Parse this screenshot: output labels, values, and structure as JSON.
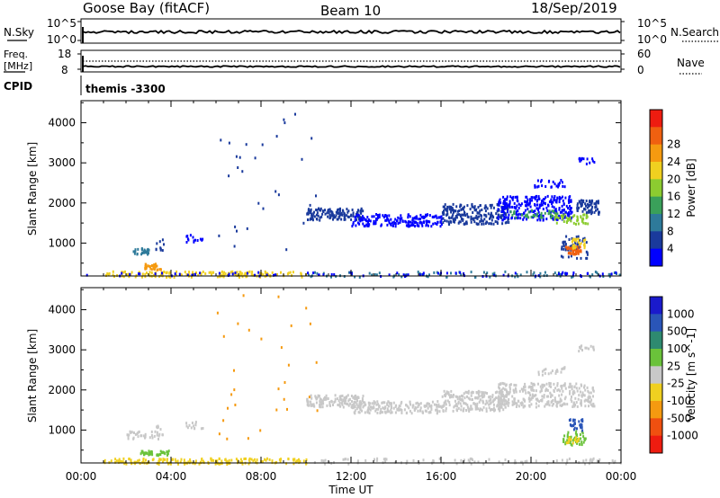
{
  "header": {
    "station": "Goose Bay (fitACF)",
    "beam": "Beam 10",
    "date": "18/Sep/2019"
  },
  "status_panels": {
    "nsky": {
      "label": "N.Sky",
      "ticks": [
        "10^5",
        "10^0"
      ]
    },
    "nsearch": {
      "label": "N.Search",
      "ticks": [
        "10^5",
        "10^0"
      ]
    },
    "freq": {
      "label_line1": "Freq.",
      "label_line2": "[MHz]",
      "ticks": [
        "18",
        "8"
      ]
    },
    "nave": {
      "label": "Nave",
      "ticks": [
        "60",
        "0"
      ]
    },
    "cpid": {
      "label": "CPID",
      "value": "themis -3300"
    }
  },
  "colors": {
    "power_scale": [
      "#0000ff",
      "#1a3a9c",
      "#2e7a9a",
      "#3aa05a",
      "#8ccc30",
      "#f0d020",
      "#f59a10",
      "#f06010",
      "#ee1c10"
    ],
    "velocity_scale": [
      "#1a1acc",
      "#2a55b8",
      "#2e8a70",
      "#6ac23a",
      "#c8c8c8",
      "#f0d020",
      "#f59a10",
      "#f05010",
      "#ee1c10"
    ]
  },
  "chart_data": [
    {
      "type": "scatter",
      "panel": "power",
      "ylabel": "Slant Range [km]",
      "ylim": [
        180,
        4550
      ],
      "yticks": [
        "1000",
        "2000",
        "3000",
        "4000"
      ],
      "colorbar": {
        "label": "Power [dB]",
        "levels": [
          "4",
          "8",
          "12",
          "16",
          "20",
          "24",
          "28"
        ]
      },
      "regions": [
        {
          "t": [
            1.0,
            10.0
          ],
          "r": [
            180,
            320
          ],
          "color": 5,
          "n": 160
        },
        {
          "t": [
            10.0,
            24.0
          ],
          "r": [
            180,
            320
          ],
          "color": 2,
          "n": 90
        },
        {
          "t": [
            0.0,
            24.0
          ],
          "r": [
            200,
            300
          ],
          "color": 0,
          "n": 80
        },
        {
          "t": [
            2.3,
            3.0
          ],
          "r": [
            750,
            900
          ],
          "color": 2,
          "n": 26
        },
        {
          "t": [
            2.8,
            3.6
          ],
          "r": [
            350,
            520
          ],
          "color": 6,
          "n": 30
        },
        {
          "t": [
            3.3,
            3.7
          ],
          "r": [
            850,
            1150
          ],
          "color": 1,
          "n": 10
        },
        {
          "t": [
            4.6,
            5.4
          ],
          "r": [
            1050,
            1250
          ],
          "color": 0,
          "n": 14
        },
        {
          "t": [
            6.0,
            10.5
          ],
          "r": [
            800,
            4400
          ],
          "color": 1,
          "n": 30
        },
        {
          "t": [
            10.0,
            12.5
          ],
          "r": [
            1600,
            1900
          ],
          "color": 1,
          "n": 140
        },
        {
          "t": [
            12.0,
            16.0
          ],
          "r": [
            1450,
            1750
          ],
          "color": 0,
          "n": 180
        },
        {
          "t": [
            16.0,
            19.0
          ],
          "r": [
            1500,
            2000
          ],
          "color": 1,
          "n": 220
        },
        {
          "t": [
            18.5,
            21.8
          ],
          "r": [
            1600,
            2200
          ],
          "color": 0,
          "n": 260
        },
        {
          "t": [
            19.0,
            21.2
          ],
          "r": [
            1650,
            1850
          ],
          "color": 3,
          "n": 40
        },
        {
          "t": [
            21.0,
            22.5
          ],
          "r": [
            1500,
            1750
          ],
          "color": 4,
          "n": 50
        },
        {
          "t": [
            22.0,
            23.0
          ],
          "r": [
            1750,
            2100
          ],
          "color": 1,
          "n": 70
        },
        {
          "t": [
            21.3,
            22.5
          ],
          "r": [
            650,
            1200
          ],
          "color": 1,
          "n": 60
        },
        {
          "t": [
            21.5,
            22.2
          ],
          "r": [
            750,
            950
          ],
          "color": 7,
          "n": 50
        },
        {
          "t": [
            21.8,
            22.4
          ],
          "r": [
            900,
            1150
          ],
          "color": 5,
          "n": 25
        },
        {
          "t": [
            20.0,
            21.5
          ],
          "r": [
            2400,
            2600
          ],
          "color": 0,
          "n": 25
        },
        {
          "t": [
            22.0,
            22.8
          ],
          "r": [
            3000,
            3150
          ],
          "color": 0,
          "n": 14
        }
      ]
    },
    {
      "type": "scatter",
      "panel": "velocity",
      "xlabel": "Time UT",
      "ylabel": "Slant Range [km]",
      "xlim": [
        0,
        24
      ],
      "ylim": [
        180,
        4550
      ],
      "xticks": [
        "00:00",
        "04:00",
        "08:00",
        "12:00",
        "16:00",
        "20:00",
        "00:00"
      ],
      "yticks": [
        "1000",
        "2000",
        "3000",
        "4000"
      ],
      "colorbar": {
        "label": "Velocity [m s^-1]",
        "levels": [
          "1000",
          "500",
          "100",
          "25",
          "-25",
          "-100",
          "-500",
          "-1000"
        ]
      },
      "regions": [
        {
          "t": [
            1.0,
            10.0
          ],
          "r": [
            180,
            320
          ],
          "color": 5,
          "n": 170
        },
        {
          "t": [
            10.0,
            24.0
          ],
          "r": [
            180,
            320
          ],
          "color": 4,
          "n": 90
        },
        {
          "t": [
            2.0,
            3.5
          ],
          "r": [
            800,
            1000
          ],
          "color": 4,
          "n": 30
        },
        {
          "t": [
            2.6,
            3.9
          ],
          "r": [
            400,
            520
          ],
          "color": 3,
          "n": 40
        },
        {
          "t": [
            3.3,
            3.7
          ],
          "r": [
            850,
            1150
          ],
          "color": 4,
          "n": 10
        },
        {
          "t": [
            4.6,
            5.4
          ],
          "r": [
            1050,
            1250
          ],
          "color": 4,
          "n": 14
        },
        {
          "t": [
            6.0,
            10.5
          ],
          "r": [
            800,
            4400
          ],
          "color": 6,
          "n": 30
        },
        {
          "t": [
            10.0,
            12.5
          ],
          "r": [
            1600,
            1900
          ],
          "color": 4,
          "n": 140
        },
        {
          "t": [
            12.0,
            16.0
          ],
          "r": [
            1450,
            1750
          ],
          "color": 4,
          "n": 180
        },
        {
          "t": [
            16.0,
            19.0
          ],
          "r": [
            1500,
            2000
          ],
          "color": 4,
          "n": 220
        },
        {
          "t": [
            18.5,
            22.8
          ],
          "r": [
            1600,
            2200
          ],
          "color": 4,
          "n": 300
        },
        {
          "t": [
            21.4,
            22.4
          ],
          "r": [
            650,
            1000
          ],
          "color": 3,
          "n": 50
        },
        {
          "t": [
            21.6,
            22.3
          ],
          "r": [
            1000,
            1300
          ],
          "color": 1,
          "n": 30
        },
        {
          "t": [
            21.5,
            22.1
          ],
          "r": [
            700,
            850
          ],
          "color": 5,
          "n": 15
        },
        {
          "t": [
            22.0,
            22.8
          ],
          "r": [
            3000,
            3150
          ],
          "color": 4,
          "n": 14
        },
        {
          "t": [
            20.0,
            21.5
          ],
          "r": [
            2400,
            2600
          ],
          "color": 4,
          "n": 20
        }
      ]
    }
  ]
}
